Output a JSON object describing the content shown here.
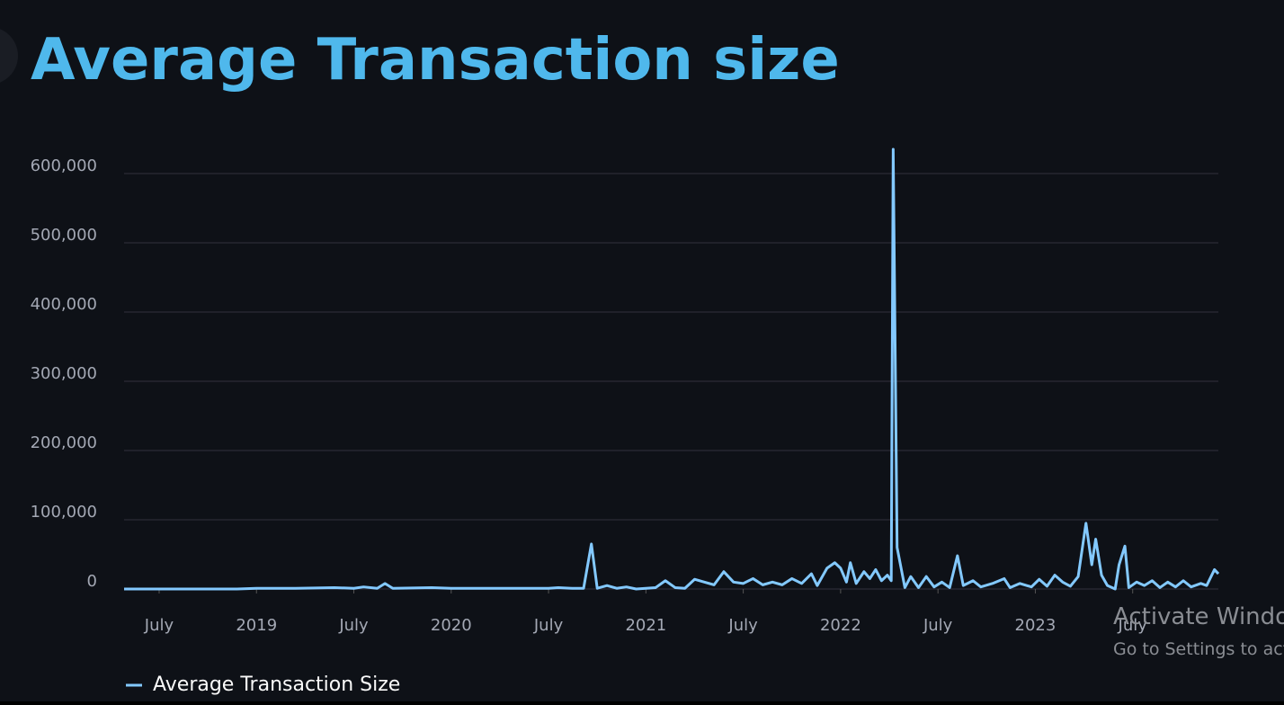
{
  "chart_data": {
    "type": "line",
    "title": "Average Transaction size",
    "x": [
      2018.32,
      2018.9,
      2019.0,
      2019.2,
      2019.4,
      2019.5,
      2019.55,
      2019.62,
      2019.66,
      2019.7,
      2019.9,
      2020.0,
      2020.5,
      2020.55,
      2020.62,
      2020.68,
      2020.72,
      2020.75,
      2020.8,
      2020.85,
      2020.9,
      2020.95,
      2021.0,
      2021.05,
      2021.1,
      2021.15,
      2021.2,
      2021.25,
      2021.3,
      2021.35,
      2021.4,
      2021.45,
      2021.5,
      2021.55,
      2021.6,
      2021.65,
      2021.7,
      2021.75,
      2021.8,
      2021.85,
      2021.88,
      2021.93,
      2021.97,
      2022.0,
      2022.03,
      2022.05,
      2022.08,
      2022.12,
      2022.15,
      2022.18,
      2022.21,
      2022.24,
      2022.26,
      2022.27,
      2022.29,
      2022.33,
      2022.36,
      2022.4,
      2022.44,
      2022.48,
      2022.52,
      2022.56,
      2022.6,
      2022.63,
      2022.68,
      2022.72,
      2022.78,
      2022.84,
      2022.87,
      2022.92,
      2022.98,
      2023.02,
      2023.06,
      2023.1,
      2023.14,
      2023.18,
      2023.22,
      2023.26,
      2023.29,
      2023.31,
      2023.34,
      2023.37,
      2023.41,
      2023.43,
      2023.46,
      2023.48,
      2023.52,
      2023.56,
      2023.6,
      2023.64,
      2023.68,
      2023.72,
      2023.76,
      2023.8,
      2023.85,
      2023.88,
      2023.92,
      2023.94
    ],
    "series": [
      {
        "name": "Average Transaction Size",
        "color": "#83c9ff",
        "values": [
          0,
          0,
          1000,
          1000,
          2000,
          1000,
          3000,
          1000,
          8000,
          1000,
          2000,
          1000,
          1000,
          2000,
          1000,
          1000,
          65000,
          1000,
          5000,
          1000,
          3000,
          0,
          1000,
          2000,
          12000,
          2000,
          1000,
          14000,
          10000,
          6000,
          25000,
          10000,
          8000,
          15000,
          6000,
          10000,
          6000,
          15000,
          8000,
          22000,
          5000,
          30000,
          38000,
          30000,
          10000,
          38000,
          8000,
          25000,
          15000,
          28000,
          12000,
          20000,
          12000,
          635000,
          60000,
          2000,
          18000,
          2000,
          18000,
          3000,
          10000,
          2000,
          48000,
          5000,
          12000,
          3000,
          8000,
          15000,
          2000,
          8000,
          3000,
          14000,
          4000,
          20000,
          10000,
          4000,
          18000,
          95000,
          35000,
          72000,
          20000,
          5000,
          0,
          35000,
          62000,
          2000,
          10000,
          5000,
          12000,
          2000,
          10000,
          3000,
          12000,
          3000,
          8000,
          5000,
          28000,
          22000
        ]
      }
    ],
    "xlim": [
      2018.32,
      2023.94
    ],
    "xticks": [
      {
        "value": 2018.5,
        "label": "July"
      },
      2019,
      {
        "value": 2019.5,
        "label": "July"
      },
      2020,
      {
        "value": 2020.5,
        "label": "July"
      },
      2021,
      {
        "value": 2021.5,
        "label": "July"
      },
      2022,
      {
        "value": 2022.5,
        "label": "July"
      },
      2023,
      {
        "value": 2023.5,
        "label": "July"
      }
    ],
    "ylim": [
      0,
      635000
    ],
    "yticks": [
      0,
      {
        "value": 100000,
        "label": "100,000"
      },
      {
        "value": 200000,
        "label": "200,000"
      },
      {
        "value": 300000,
        "label": "300,000"
      },
      {
        "value": 400000,
        "label": "400,000"
      },
      {
        "value": 500000,
        "label": "500,000"
      },
      {
        "value": 600000,
        "label": "600,000"
      }
    ],
    "grid": true
  },
  "watermark": {
    "title": "Activate Windows",
    "subtitle": "Go to Settings to activate Windows."
  }
}
